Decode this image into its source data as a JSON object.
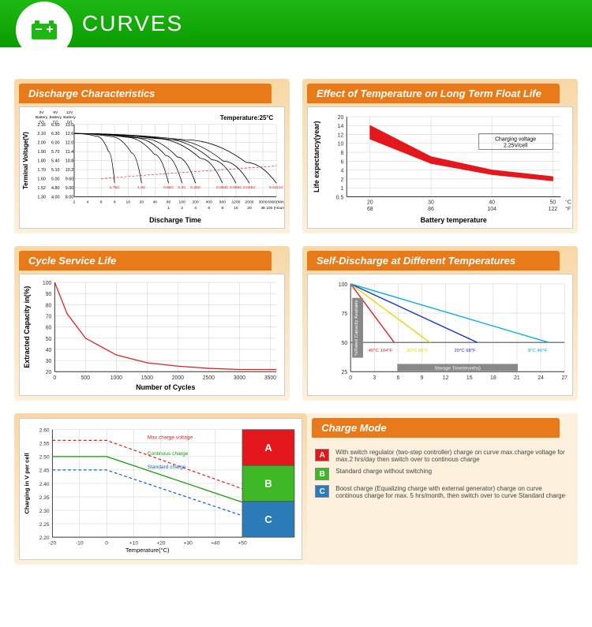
{
  "header": {
    "title": "CURVES"
  },
  "panels": {
    "discharge": {
      "title": "Discharge Characteristics",
      "badge": "Temperature:25°C",
      "ylabel": "Terminal Voltage(V)",
      "xlabel": "Discharge Time",
      "yheaders": [
        "2V Battery (V)",
        "6V Battery (V)",
        "12V Battery (V)"
      ],
      "y_2v": [
        "2.16",
        "2.10",
        "2.00",
        "1.90",
        "1.80",
        "1.70",
        "1.60",
        "1.52",
        "1.30"
      ],
      "y_6v": [
        "6.50",
        "6.30",
        "6.00",
        "5.70",
        "5.40",
        "5.10",
        "5.00",
        "4.80",
        "4.00"
      ],
      "y_12v": [
        "13.0",
        "12.6",
        "12.0",
        "11.4",
        "10.8",
        "10.2",
        "9.60",
        "9.00",
        "8.00"
      ],
      "x_min": [
        "2",
        "4",
        "6",
        "8",
        "10",
        "20",
        "40",
        "60",
        "100",
        "200",
        "400",
        "600",
        "1200",
        "2000",
        "3000",
        "6000(Min)"
      ],
      "x_hr": [
        "",
        "",
        "",
        "",
        "",
        "",
        "",
        "1",
        "2",
        "4",
        "6",
        "8",
        "10",
        "20",
        "48",
        "100 (Hours)"
      ],
      "curve_labels": [
        "1.75C",
        "1.0C",
        "0.65C",
        "0.4C",
        "0.25C",
        "0.093C",
        "0.055C",
        "0.025C",
        "0.0115C"
      ],
      "curve_color": "#000",
      "label_color": "#d22"
    },
    "floatlife": {
      "title": "Effect of Temperature on Long Term Float Life",
      "ylabel": "Life expectancy(year)",
      "xlabel": "Battery temperature",
      "badge": "Charging voltage 2.25V/cell",
      "y_ticks": [
        "20",
        "14",
        "12",
        "10",
        "8",
        "6",
        "4",
        "2",
        "1",
        "0.5"
      ],
      "x_c": [
        "20",
        "30",
        "40",
        "50"
      ],
      "x_f": [
        "68",
        "86",
        "104",
        "122"
      ],
      "x_units": [
        "°C",
        "°F"
      ],
      "band_color": "#e4181c",
      "band_top": [
        [
          0,
          14
        ],
        [
          1,
          7
        ],
        [
          2,
          4
        ],
        [
          3,
          2.5
        ]
      ],
      "band_bot": [
        [
          0,
          11
        ],
        [
          1,
          5.5
        ],
        [
          2,
          3
        ],
        [
          3,
          1.8
        ]
      ]
    },
    "cycle": {
      "title": "Cycle Service Life",
      "ylabel": "Extracted Capacity  in(%)",
      "xlabel": "Number of Cycles",
      "y_ticks": [
        "100",
        "90",
        "80",
        "70",
        "60",
        "50",
        "40",
        "30",
        "20"
      ],
      "x_ticks": [
        "0",
        "500",
        "1000",
        "1500",
        "2000",
        "2500",
        "3000",
        "3500"
      ],
      "line_color": "#d22",
      "points": [
        [
          0,
          100
        ],
        [
          200,
          72
        ],
        [
          500,
          50
        ],
        [
          1000,
          35
        ],
        [
          1500,
          28
        ],
        [
          2000,
          25
        ],
        [
          2500,
          23
        ],
        [
          3000,
          22
        ],
        [
          3600,
          22
        ]
      ]
    },
    "selfdischarge": {
      "title": "Self-Discharge at Different Temperatures",
      "ylabel": "%Rated Capacity Available",
      "xlabel": "Storage Time(months)",
      "y_ticks": [
        "100",
        "75",
        "50",
        "25"
      ],
      "x_ticks": [
        "0",
        "3",
        "6",
        "9",
        "12",
        "15",
        "18",
        "21",
        "24",
        "27"
      ],
      "lines": [
        {
          "color": "#d22",
          "label": "40°C 104°F",
          "pts": [
            [
              0,
              100
            ],
            [
              5.5,
              50
            ]
          ]
        },
        {
          "color": "#e8d800",
          "label": "30°C 86°F",
          "pts": [
            [
              0,
              100
            ],
            [
              10,
              50
            ]
          ]
        },
        {
          "color": "#1030d0",
          "label": "20°C 68°F",
          "pts": [
            [
              0,
              100
            ],
            [
              16,
              50
            ]
          ]
        },
        {
          "color": "#00b0e0",
          "label": "8°C 46°F",
          "pts": [
            [
              0,
              100
            ],
            [
              25,
              50
            ]
          ]
        }
      ]
    },
    "chargemode": {
      "title": "Charge Mode",
      "ylabel": "Charging in V per cell",
      "xlabel": "Temperature(°C)",
      "y_ticks": [
        "2.60",
        "2.55",
        "2.50",
        "2.45",
        "2.40",
        "2.35",
        "2.30",
        "2.25",
        "2.20"
      ],
      "x_ticks": [
        "-20",
        "-10",
        "0",
        "+10",
        "+20",
        "+30",
        "+40",
        "+50"
      ],
      "lines": [
        {
          "color": "#d22",
          "dash": "4,3",
          "label": "Max.charge voltage",
          "pts": [
            [
              -20,
              2.56
            ],
            [
              0,
              2.56
            ],
            [
              50,
              2.38
            ]
          ]
        },
        {
          "color": "#0a9c00",
          "dash": "",
          "label": "Continous charge",
          "pts": [
            [
              -20,
              2.5
            ],
            [
              0,
              2.5
            ],
            [
              50,
              2.33
            ]
          ]
        },
        {
          "color": "#1060d0",
          "dash": "4,3",
          "label": "Standard charge",
          "pts": [
            [
              -20,
              2.45
            ],
            [
              0,
              2.45
            ],
            [
              50,
              2.28
            ]
          ]
        }
      ],
      "boxes": [
        {
          "label": "A",
          "color": "#e4181c"
        },
        {
          "label": "B",
          "color": "#3fb825"
        },
        {
          "label": "C",
          "color": "#2a7bb8"
        }
      ],
      "legend": [
        {
          "box": "A",
          "color": "#e4181c",
          "text": "With switch regulator (two-step controller) charge on curve max.charge voltage for max.2 hrs/day  then switch over to continous charge"
        },
        {
          "box": "B",
          "color": "#3fb825",
          "text": "Standard charge without switching"
        },
        {
          "box": "C",
          "color": "#2a7bb8",
          "text": "Boost charge (Equalizing charge with external generator) charge on curve continous charge for max. 5 hrs/month, then switch over to curve Standard charge"
        }
      ]
    }
  }
}
